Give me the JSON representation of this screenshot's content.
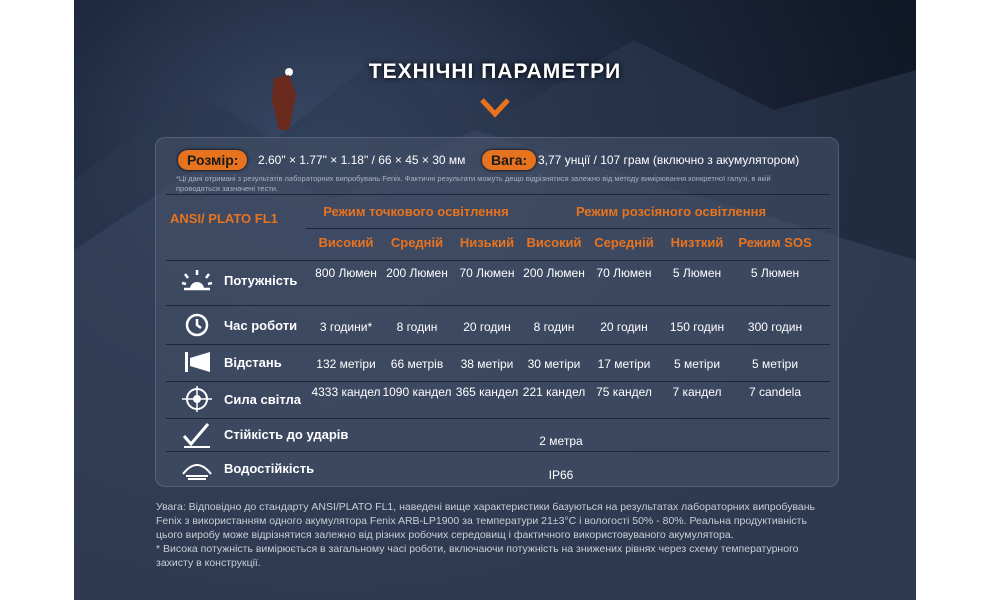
{
  "title": "ТЕХНІЧНІ ПАРАМЕТРИ",
  "size": {
    "label": "Розмір:",
    "value": "2.60\" × 1.77\" × 1.18\" / 66 × 45 × 30 мм"
  },
  "weight": {
    "label": "Вага:",
    "value": "3,77 унції / 107 грам (включно з акумулятором)"
  },
  "note": "*Ці дані отримані з результатів лабораторних випробувань Fenix. Фактичні результати можуть дещо відрізнятися залежно від методу вимірювання конкретної галузі, в якій проводяться зазначені тести.",
  "table": {
    "corner": "ANSI/ PLATO FL1",
    "group1": "Режим точкового освітлення",
    "group2": "Режим розсіяного освітлення",
    "modes": [
      "Високий",
      "Средній",
      "Низький",
      "Високий",
      "Середній",
      "Низткий",
      "Режим SOS"
    ],
    "rows": [
      {
        "icon": "brightness-icon",
        "label": "Потужність",
        "values": [
          "800 Люмен",
          "200 Люмен",
          "70 Люмен",
          "200 Люмен",
          "70 Люмен",
          "5 Люмен",
          "5 Люмен"
        ]
      },
      {
        "icon": "clock-icon",
        "label": "Час роботи",
        "values": [
          "3 години*",
          "8 годин",
          "20 годин",
          "8 годин",
          "20 годин",
          "150 годин",
          "300 годин"
        ]
      },
      {
        "icon": "distance-icon",
        "label": "Відстань",
        "values": [
          "132 метіри",
          "66 метрів",
          "38 метіри",
          "30 метіри",
          "17 метіри",
          "5 метіри",
          "5 метіри"
        ]
      },
      {
        "icon": "target-icon",
        "label": "Сила світла",
        "values": [
          "4333 кандел",
          "1090 кандел",
          "365 кандел",
          "221 кандел",
          "75 кандел",
          "7 кандел",
          "7 candela"
        ]
      }
    ],
    "impact": {
      "icon": "impact-icon",
      "label": "Стійкість до ударів",
      "value": "2 метра"
    },
    "water": {
      "icon": "water-icon",
      "label": "Водостійкість",
      "value": "IP66"
    }
  },
  "footer": [
    "Увага: Відповідно до стандарту ANSI/PLATO FL1, наведені вище характеристики базуються на результатах лабораторних випробувань Fenix з використанням одного акумулятора Fenix ARB-LP1900 за температури 21±3°C і вологості 50% - 80%. Реальна продуктивність цього виробу може відрізнятися залежно від різних робочих середовищ і фактичного використовуваного акумулятора.",
    "* Висока потужність вимірюється в загальному часі роботи, включаючи потужність на знижених рівнях через схему температурного захисту в конструкції."
  ],
  "colors": {
    "accent": "#e8731e",
    "background": "#1f2a40"
  }
}
